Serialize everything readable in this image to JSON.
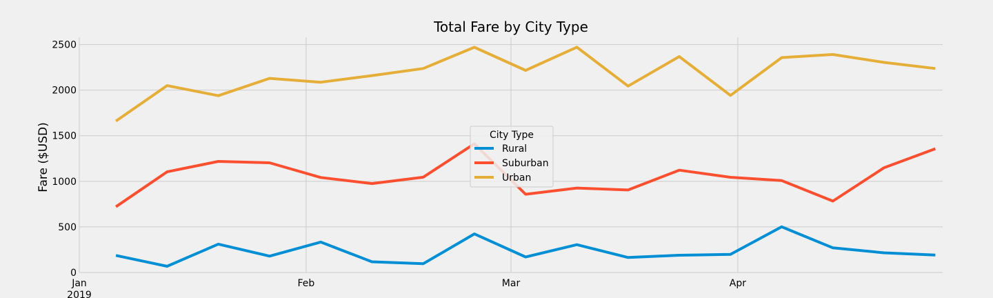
{
  "chart_data": {
    "type": "line",
    "title": "Total Fare by City Type",
    "xlabel": "",
    "ylabel": "Fare ($USD)",
    "x": [
      "2019-01-06",
      "2019-01-13",
      "2019-01-20",
      "2019-01-27",
      "2019-02-03",
      "2019-02-10",
      "2019-02-17",
      "2019-02-24",
      "2019-03-03",
      "2019-03-10",
      "2019-03-17",
      "2019-03-24",
      "2019-03-31",
      "2019-04-07",
      "2019-04-14",
      "2019-04-21",
      "2019-04-28"
    ],
    "xlim": [
      "2019-01-01",
      "2019-04-29"
    ],
    "ylim": [
      0,
      2580
    ],
    "x_ticks": [
      {
        "date": "2019-01-01",
        "label": "Jan",
        "sublabel": "2019"
      },
      {
        "date": "2019-02-01",
        "label": "Feb",
        "sublabel": ""
      },
      {
        "date": "2019-03-01",
        "label": "Mar",
        "sublabel": ""
      },
      {
        "date": "2019-04-01",
        "label": "Apr",
        "sublabel": ""
      }
    ],
    "y_ticks": [
      0,
      500,
      1000,
      1500,
      2000,
      2500
    ],
    "grid": true,
    "legend": {
      "title": "City Type",
      "placement": "center"
    },
    "series": [
      {
        "name": "Rural",
        "color": "#008fd5",
        "values": [
          187,
          68,
          311,
          179,
          334,
          117,
          96,
          423,
          170,
          305,
          164,
          189,
          199,
          501,
          270,
          216,
          191
        ]
      },
      {
        "name": "Suburban",
        "color": "#fc4f30",
        "values": [
          721,
          1104,
          1218,
          1203,
          1042,
          975,
          1045,
          1412,
          858,
          926,
          905,
          1122,
          1044,
          1008,
          783,
          1149,
          1357
        ]
      },
      {
        "name": "Urban",
        "color": "#e5ae38",
        "values": [
          1661,
          2050,
          1939,
          2129,
          2087,
          2159,
          2237,
          2470,
          2217,
          2471,
          2044,
          2368,
          1942,
          2357,
          2391,
          2304,
          2237
        ]
      }
    ]
  }
}
